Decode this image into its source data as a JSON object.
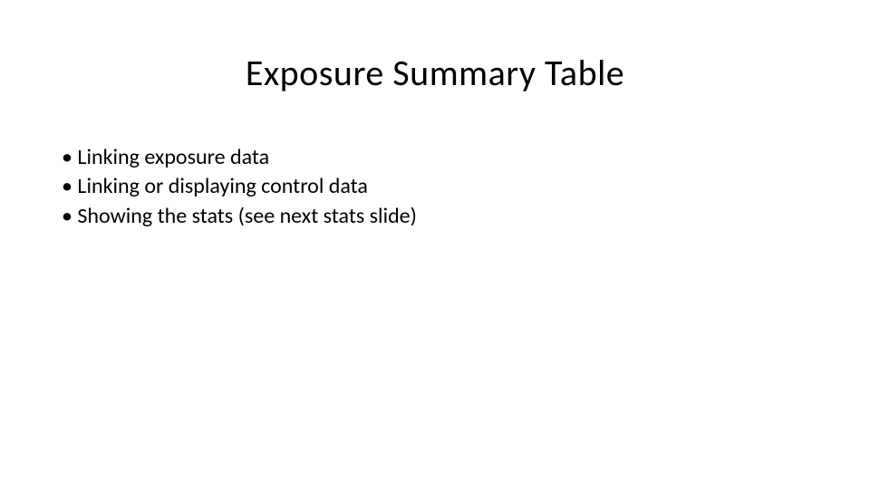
{
  "slide": {
    "title": "Exposure Summary Table",
    "title_fontsize": 40,
    "title_color": "#000000",
    "background_color": "#ffffff",
    "bullets": [
      "Linking exposure data",
      "Linking or displaying control data",
      "Showing the stats (see next stats slide)"
    ],
    "bullet_fontsize": 24,
    "bullet_color": "#000000",
    "font_family": "Calibri"
  }
}
